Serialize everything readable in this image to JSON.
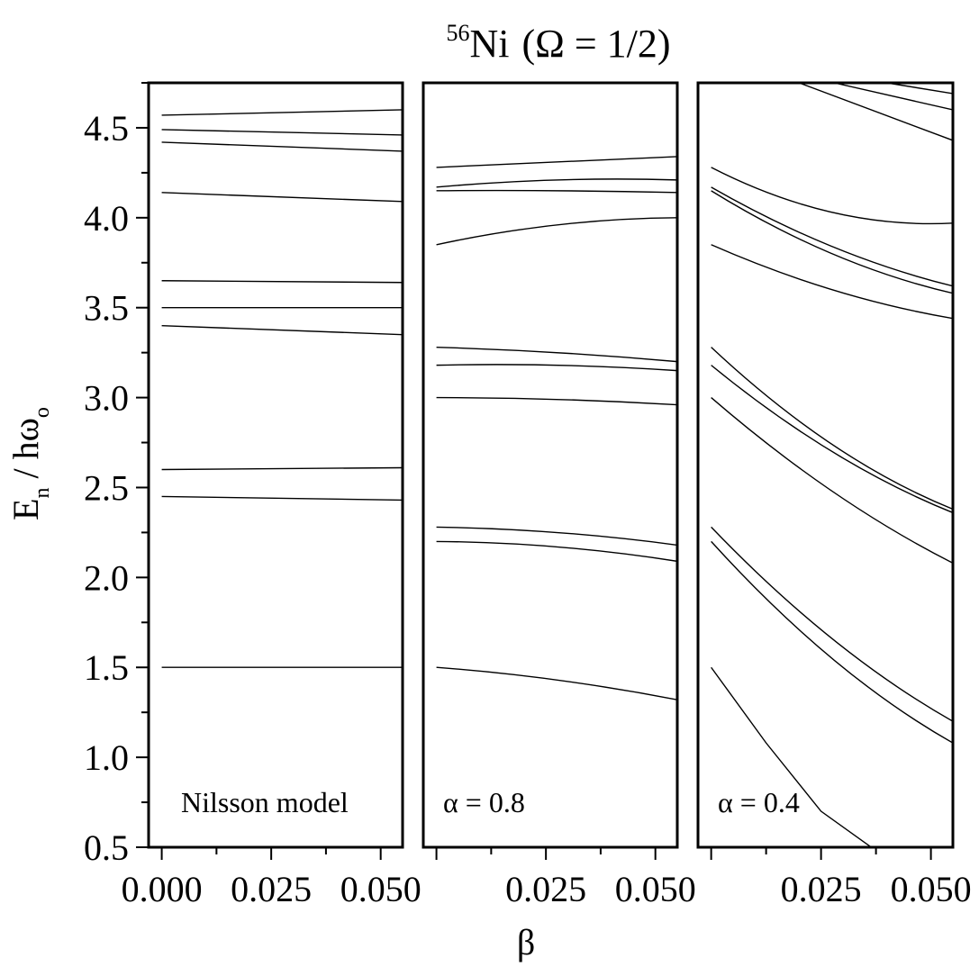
{
  "title": {
    "superscript": "56",
    "element": "Ni",
    "condition": "(Ω = 1/2)"
  },
  "axes": {
    "ylabel": {
      "main": "E",
      "sub1": "n",
      "mid": " / hω",
      "sub2": "o"
    },
    "xlabel": "β"
  },
  "chart_data": {
    "type": "line",
    "xlabel": "β",
    "ylabel": "En / hωo",
    "ylim": [
      0.5,
      4.75
    ],
    "yticks": [
      "0.5",
      "1.0",
      "1.5",
      "2.0",
      "2.5",
      "3.0",
      "3.5",
      "4.0",
      "4.5"
    ],
    "panels": [
      {
        "label": "Nilsson model",
        "xlim": [
          -0.003,
          0.055
        ],
        "xticks": [
          "0.000",
          "0.025",
          "0.050"
        ],
        "series": [
          {
            "x": [
              0,
              0.055
            ],
            "y": [
              1.5,
              1.5
            ]
          },
          {
            "x": [
              0,
              0.055
            ],
            "y": [
              2.45,
              2.43
            ]
          },
          {
            "x": [
              0,
              0.055
            ],
            "y": [
              2.6,
              2.61
            ]
          },
          {
            "x": [
              0,
              0.055
            ],
            "y": [
              3.4,
              3.35
            ]
          },
          {
            "x": [
              0,
              0.055
            ],
            "y": [
              3.5,
              3.5
            ]
          },
          {
            "x": [
              0,
              0.055
            ],
            "y": [
              3.65,
              3.64
            ]
          },
          {
            "x": [
              0,
              0.055
            ],
            "y": [
              4.14,
              4.09
            ]
          },
          {
            "x": [
              0,
              0.055
            ],
            "y": [
              4.42,
              4.37
            ]
          },
          {
            "x": [
              0,
              0.055
            ],
            "y": [
              4.49,
              4.46
            ]
          },
          {
            "x": [
              0,
              0.055
            ],
            "y": [
              4.57,
              4.6
            ]
          }
        ]
      },
      {
        "label": "α = 0.8",
        "xlim": [
          -0.003,
          0.055
        ],
        "xticks": [
          "0.025",
          "0.050"
        ],
        "series": [
          {
            "x": [
              0,
              0.0275,
              0.055
            ],
            "y": [
              1.5,
              1.43,
              1.32
            ]
          },
          {
            "x": [
              0,
              0.0275,
              0.055
            ],
            "y": [
              2.2,
              2.17,
              2.09
            ]
          },
          {
            "x": [
              0,
              0.0275,
              0.055
            ],
            "y": [
              2.28,
              2.25,
              2.18
            ]
          },
          {
            "x": [
              0,
              0.0275,
              0.055
            ],
            "y": [
              3.0,
              2.99,
              2.96
            ]
          },
          {
            "x": [
              0,
              0.0275,
              0.055
            ],
            "y": [
              3.18,
              3.18,
              3.15
            ]
          },
          {
            "x": [
              0,
              0.0275,
              0.055
            ],
            "y": [
              3.28,
              3.25,
              3.2
            ]
          },
          {
            "x": [
              0,
              0.0275,
              0.055
            ],
            "y": [
              3.85,
              3.96,
              4.0
            ]
          },
          {
            "x": [
              0,
              0.0275,
              0.055
            ],
            "y": [
              4.15,
              4.15,
              4.14
            ]
          },
          {
            "x": [
              0,
              0.0275,
              0.055
            ],
            "y": [
              4.17,
              4.21,
              4.21
            ]
          },
          {
            "x": [
              0,
              0.0275,
              0.055
            ],
            "y": [
              4.28,
              4.31,
              4.34
            ]
          }
        ]
      },
      {
        "label": "α = 0.4",
        "xlim": [
          -0.003,
          0.055
        ],
        "xticks": [
          "0.025",
          "0.050"
        ],
        "series": [
          {
            "x": [
              0,
              0.0125,
              0.025,
              0.037
            ],
            "y": [
              1.5,
              1.08,
              0.7,
              0.49
            ]
          },
          {
            "x": [
              0,
              0.0275,
              0.055
            ],
            "y": [
              2.2,
              1.55,
              1.08
            ]
          },
          {
            "x": [
              0,
              0.0275,
              0.055
            ],
            "y": [
              2.28,
              1.66,
              1.2
            ]
          },
          {
            "x": [
              0,
              0.0275,
              0.055
            ],
            "y": [
              3.0,
              2.48,
              2.08
            ]
          },
          {
            "x": [
              0,
              0.0275,
              0.055
            ],
            "y": [
              3.18,
              2.7,
              2.36
            ]
          },
          {
            "x": [
              0,
              0.0275,
              0.055
            ],
            "y": [
              3.28,
              2.74,
              2.38
            ]
          },
          {
            "x": [
              0,
              0.0275,
              0.055
            ],
            "y": [
              3.85,
              3.6,
              3.44
            ]
          },
          {
            "x": [
              0,
              0.0275,
              0.055
            ],
            "y": [
              4.15,
              3.8,
              3.58
            ]
          },
          {
            "x": [
              0,
              0.0275,
              0.055
            ],
            "y": [
              4.17,
              3.84,
              3.62
            ]
          },
          {
            "x": [
              0,
              0.0275,
              0.055
            ],
            "y": [
              4.28,
              4.03,
              3.97
            ]
          },
          {
            "x": [
              0.02,
              0.055
            ],
            "y": [
              4.75,
              4.43
            ]
          },
          {
            "x": [
              0.028,
              0.055
            ],
            "y": [
              4.75,
              4.6
            ]
          },
          {
            "x": [
              0.04,
              0.055
            ],
            "y": [
              4.75,
              4.69
            ]
          }
        ]
      }
    ]
  }
}
